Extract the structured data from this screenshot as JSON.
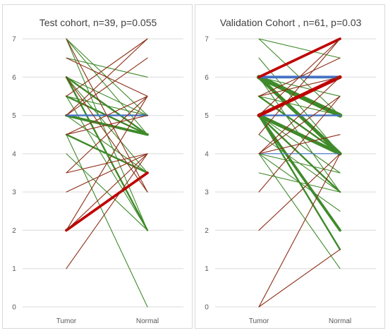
{
  "chart_data": [
    {
      "type": "line",
      "title": "Test cohort, n=39, p=0.055",
      "categories": [
        "Tumor",
        "Normal"
      ],
      "ylim": [
        0,
        7
      ],
      "yticks": [
        0,
        1,
        2,
        3,
        4,
        5,
        6,
        7
      ],
      "grid": true,
      "legend": "none",
      "pairs": [
        {
          "tumor": 7,
          "normal": 2,
          "color": "#3f8a2a",
          "weight": 1
        },
        {
          "tumor": 7,
          "normal": 4.5,
          "color": "#3f8a2a",
          "weight": 1
        },
        {
          "tumor": 7,
          "normal": 5,
          "color": "#3f8a2a",
          "weight": 1
        },
        {
          "tumor": 6.5,
          "normal": 6,
          "color": "#3f8a2a",
          "weight": 1
        },
        {
          "tumor": 6,
          "normal": 2,
          "color": "#3f8a2a",
          "weight": 2
        },
        {
          "tumor": 6,
          "normal": 4.5,
          "color": "#3f8a2a",
          "weight": 2
        },
        {
          "tumor": 6,
          "normal": 5,
          "color": "#3f8a2a",
          "weight": 1
        },
        {
          "tumor": 6,
          "normal": 3.5,
          "color": "#3f8a2a",
          "weight": 1
        },
        {
          "tumor": 5.5,
          "normal": 4.5,
          "color": "#3f8a2a",
          "weight": 2
        },
        {
          "tumor": 5.5,
          "normal": 2,
          "color": "#3f8a2a",
          "weight": 1
        },
        {
          "tumor": 5.5,
          "normal": 5,
          "color": "#3f8a2a",
          "weight": 1
        },
        {
          "tumor": 5,
          "normal": 4.5,
          "color": "#3f8a2a",
          "weight": 3
        },
        {
          "tumor": 5,
          "normal": 3.5,
          "color": "#3f8a2a",
          "weight": 1
        },
        {
          "tumor": 5,
          "normal": 5,
          "color": "#4472c4",
          "weight": 2
        },
        {
          "tumor": 4.5,
          "normal": 3.5,
          "color": "#3f8a2a",
          "weight": 2
        },
        {
          "tumor": 4.5,
          "normal": 0,
          "color": "#3f8a2a",
          "weight": 1
        },
        {
          "tumor": 4,
          "normal": 2,
          "color": "#3f8a2a",
          "weight": 1
        },
        {
          "tumor": 2,
          "normal": 3.5,
          "color": "#c00000",
          "weight": 3
        },
        {
          "tumor": 2,
          "normal": 4,
          "color": "#8b2e16",
          "weight": 1
        },
        {
          "tumor": 2,
          "normal": 5.5,
          "color": "#8b2e16",
          "weight": 1
        },
        {
          "tumor": 1,
          "normal": 4,
          "color": "#8b2e16",
          "weight": 1
        },
        {
          "tumor": 3,
          "normal": 4,
          "color": "#8b2e16",
          "weight": 1
        },
        {
          "tumor": 3.5,
          "normal": 5.5,
          "color": "#8b2e16",
          "weight": 1
        },
        {
          "tumor": 3.5,
          "normal": 4,
          "color": "#8b2e16",
          "weight": 1
        },
        {
          "tumor": 4.5,
          "normal": 5,
          "color": "#8b2e16",
          "weight": 1
        },
        {
          "tumor": 4.5,
          "normal": 5.5,
          "color": "#8b2e16",
          "weight": 1
        },
        {
          "tumor": 5,
          "normal": 6.5,
          "color": "#8b2e16",
          "weight": 1
        },
        {
          "tumor": 5,
          "normal": 7,
          "color": "#8b2e16",
          "weight": 1
        },
        {
          "tumor": 5.5,
          "normal": 7,
          "color": "#8b2e16",
          "weight": 1
        },
        {
          "tumor": 6,
          "normal": 3,
          "color": "#8b2e16",
          "weight": 1
        },
        {
          "tumor": 7,
          "normal": 3,
          "color": "#8b2e16",
          "weight": 1
        },
        {
          "tumor": 6.5,
          "normal": 5.5,
          "color": "#8b2e16",
          "weight": 1
        }
      ]
    },
    {
      "type": "line",
      "title": "Validation Cohort , n=61, p=0.03",
      "categories": [
        "Tumor",
        "Normal"
      ],
      "ylim": [
        0,
        7
      ],
      "yticks": [
        0,
        1,
        2,
        3,
        4,
        5,
        6,
        7
      ],
      "grid": true,
      "legend": "none",
      "pairs": [
        {
          "tumor": 7,
          "normal": 5,
          "color": "#3f8a2a",
          "weight": 1
        },
        {
          "tumor": 7,
          "normal": 6.5,
          "color": "#3f8a2a",
          "weight": 1
        },
        {
          "tumor": 6.5,
          "normal": 4,
          "color": "#3f8a2a",
          "weight": 1
        },
        {
          "tumor": 6,
          "normal": 5,
          "color": "#3f8a2a",
          "weight": 5
        },
        {
          "tumor": 6,
          "normal": 4,
          "color": "#3f8a2a",
          "weight": 4
        },
        {
          "tumor": 6,
          "normal": 3,
          "color": "#3f8a2a",
          "weight": 1
        },
        {
          "tumor": 6,
          "normal": 5.5,
          "color": "#3f8a2a",
          "weight": 1
        },
        {
          "tumor": 5.5,
          "normal": 4,
          "color": "#3f8a2a",
          "weight": 2
        },
        {
          "tumor": 5.5,
          "normal": 5,
          "color": "#3f8a2a",
          "weight": 1
        },
        {
          "tumor": 5,
          "normal": 4,
          "color": "#3f8a2a",
          "weight": 4
        },
        {
          "tumor": 5,
          "normal": 3,
          "color": "#3f8a2a",
          "weight": 2
        },
        {
          "tumor": 5,
          "normal": 2,
          "color": "#3f8a2a",
          "weight": 3
        },
        {
          "tumor": 5,
          "normal": 1.5,
          "color": "#3f8a2a",
          "weight": 2
        },
        {
          "tumor": 5,
          "normal": 3.5,
          "color": "#3f8a2a",
          "weight": 1
        },
        {
          "tumor": 4.5,
          "normal": 3,
          "color": "#3f8a2a",
          "weight": 1
        },
        {
          "tumor": 4,
          "normal": 2.5,
          "color": "#3f8a2a",
          "weight": 1
        },
        {
          "tumor": 4,
          "normal": 1,
          "color": "#3f8a2a",
          "weight": 1
        },
        {
          "tumor": 4,
          "normal": 3.5,
          "color": "#3f8a2a",
          "weight": 1
        },
        {
          "tumor": 3.5,
          "normal": 3,
          "color": "#3f8a2a",
          "weight": 1
        },
        {
          "tumor": 6,
          "normal": 6,
          "color": "#4472c4",
          "weight": 3
        },
        {
          "tumor": 5,
          "normal": 5,
          "color": "#4472c4",
          "weight": 2
        },
        {
          "tumor": 4,
          "normal": 4,
          "color": "#4472c4",
          "weight": 1
        },
        {
          "tumor": 5,
          "normal": 6,
          "color": "#c00000",
          "weight": 4
        },
        {
          "tumor": 6,
          "normal": 7,
          "color": "#c00000",
          "weight": 3
        },
        {
          "tumor": 5.5,
          "normal": 6,
          "color": "#8b2e16",
          "weight": 1
        },
        {
          "tumor": 5,
          "normal": 7,
          "color": "#8b2e16",
          "weight": 1
        },
        {
          "tumor": 4.5,
          "normal": 7,
          "color": "#8b2e16",
          "weight": 1
        },
        {
          "tumor": 4,
          "normal": 6,
          "color": "#8b2e16",
          "weight": 1
        },
        {
          "tumor": 4,
          "normal": 5.5,
          "color": "#8b2e16",
          "weight": 1
        },
        {
          "tumor": 4,
          "normal": 4.5,
          "color": "#8b2e16",
          "weight": 1
        },
        {
          "tumor": 3,
          "normal": 5.5,
          "color": "#8b2e16",
          "weight": 1
        },
        {
          "tumor": 2,
          "normal": 4,
          "color": "#8b2e16",
          "weight": 1
        },
        {
          "tumor": 0,
          "normal": 4,
          "color": "#8b2e16",
          "weight": 1
        },
        {
          "tumor": 0,
          "normal": 1.5,
          "color": "#8b2e16",
          "weight": 1
        },
        {
          "tumor": 5.5,
          "normal": 6.5,
          "color": "#8b2e16",
          "weight": 1
        }
      ]
    }
  ]
}
